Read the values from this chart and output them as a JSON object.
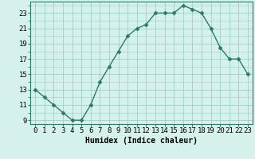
{
  "x": [
    0,
    1,
    2,
    3,
    4,
    5,
    6,
    7,
    8,
    9,
    10,
    11,
    12,
    13,
    14,
    15,
    16,
    17,
    18,
    19,
    20,
    21,
    22,
    23
  ],
  "y": [
    13,
    12,
    11,
    10,
    9,
    9,
    11,
    14,
    16,
    18,
    20,
    21,
    21.5,
    23,
    23,
    23,
    24,
    23.5,
    23,
    21,
    18.5,
    17,
    17,
    15
  ],
  "line_color": "#2d7a6a",
  "marker": "D",
  "marker_size": 2.5,
  "bg_color": "#d4f2eb",
  "grid_color": "#a0cfc4",
  "xlabel": "Humidex (Indice chaleur)",
  "xlim": [
    -0.5,
    23.5
  ],
  "ylim": [
    8.5,
    24.5
  ],
  "yticks": [
    9,
    11,
    13,
    15,
    17,
    19,
    21,
    23
  ],
  "xticks": [
    0,
    1,
    2,
    3,
    4,
    5,
    6,
    7,
    8,
    9,
    10,
    11,
    12,
    13,
    14,
    15,
    16,
    17,
    18,
    19,
    20,
    21,
    22,
    23
  ],
  "xlabel_fontsize": 7,
  "tick_fontsize": 6.5
}
